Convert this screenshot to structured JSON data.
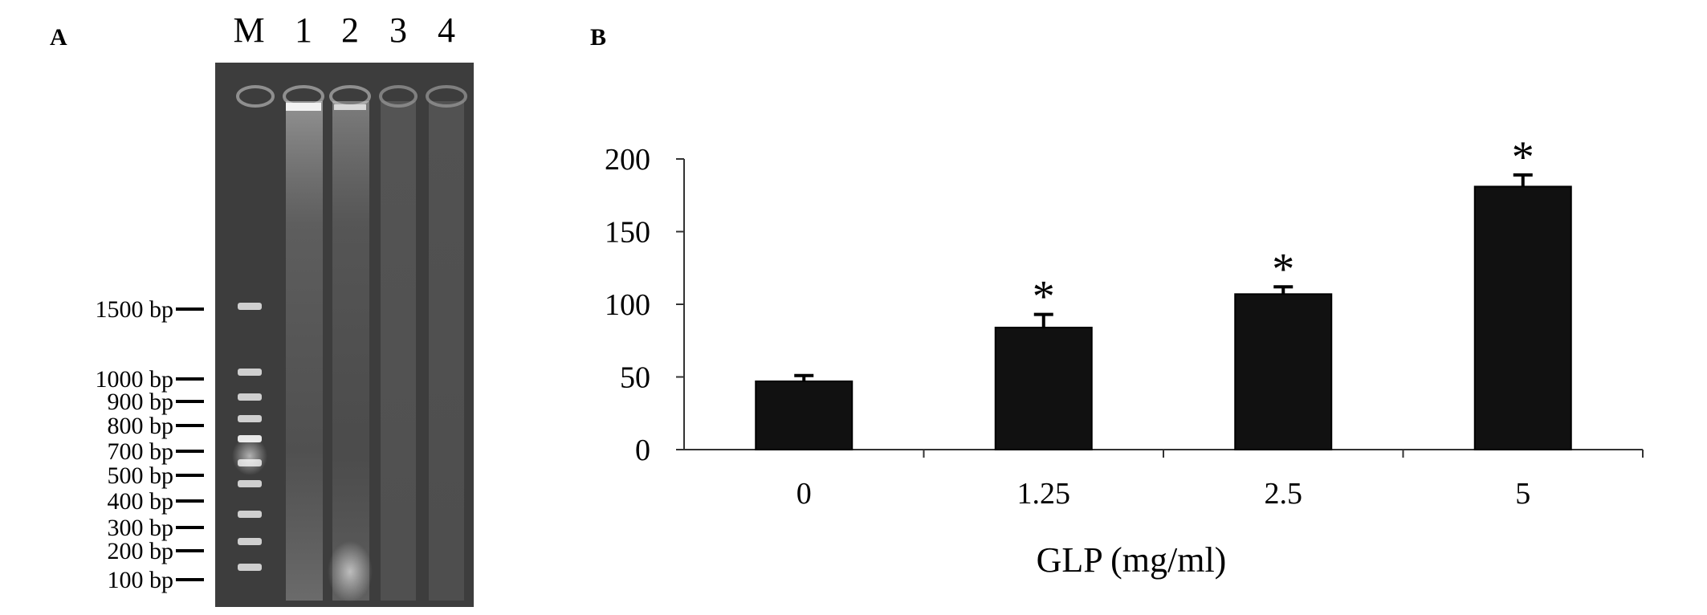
{
  "panel_a": {
    "letter": "A",
    "lanes": [
      "M",
      "1",
      "2",
      "3",
      "4"
    ],
    "markers": [
      {
        "label": "1500 bp",
        "size": 1500
      },
      {
        "label": "1000 bp",
        "size": 1000
      },
      {
        "label": "900 bp",
        "size": 900
      },
      {
        "label": "800 bp",
        "size": 800
      },
      {
        "label": "700 bp",
        "size": 700
      },
      {
        "label": "500 bp",
        "size": 500
      },
      {
        "label": "400 bp",
        "size": 400
      },
      {
        "label": "300 bp",
        "size": 300
      },
      {
        "label": "200 bp",
        "size": 200
      },
      {
        "label": "100 bp",
        "size": 100
      }
    ]
  },
  "panel_b": {
    "letter": "B"
  },
  "chart_data": {
    "type": "bar",
    "categories": [
      "0",
      "1.25",
      "2.5",
      "5"
    ],
    "values": [
      47,
      84,
      107,
      181
    ],
    "errors": [
      4,
      9,
      5,
      8
    ],
    "significance": [
      "",
      "*",
      "*",
      "*"
    ],
    "xlabel": "GLP (mg/ml)",
    "ylabel": "",
    "ylim": [
      0,
      200
    ],
    "yticks": [
      0,
      50,
      100,
      150,
      200
    ],
    "colors": {
      "bar": "#111111",
      "axis": "#333333"
    },
    "grid": false
  }
}
